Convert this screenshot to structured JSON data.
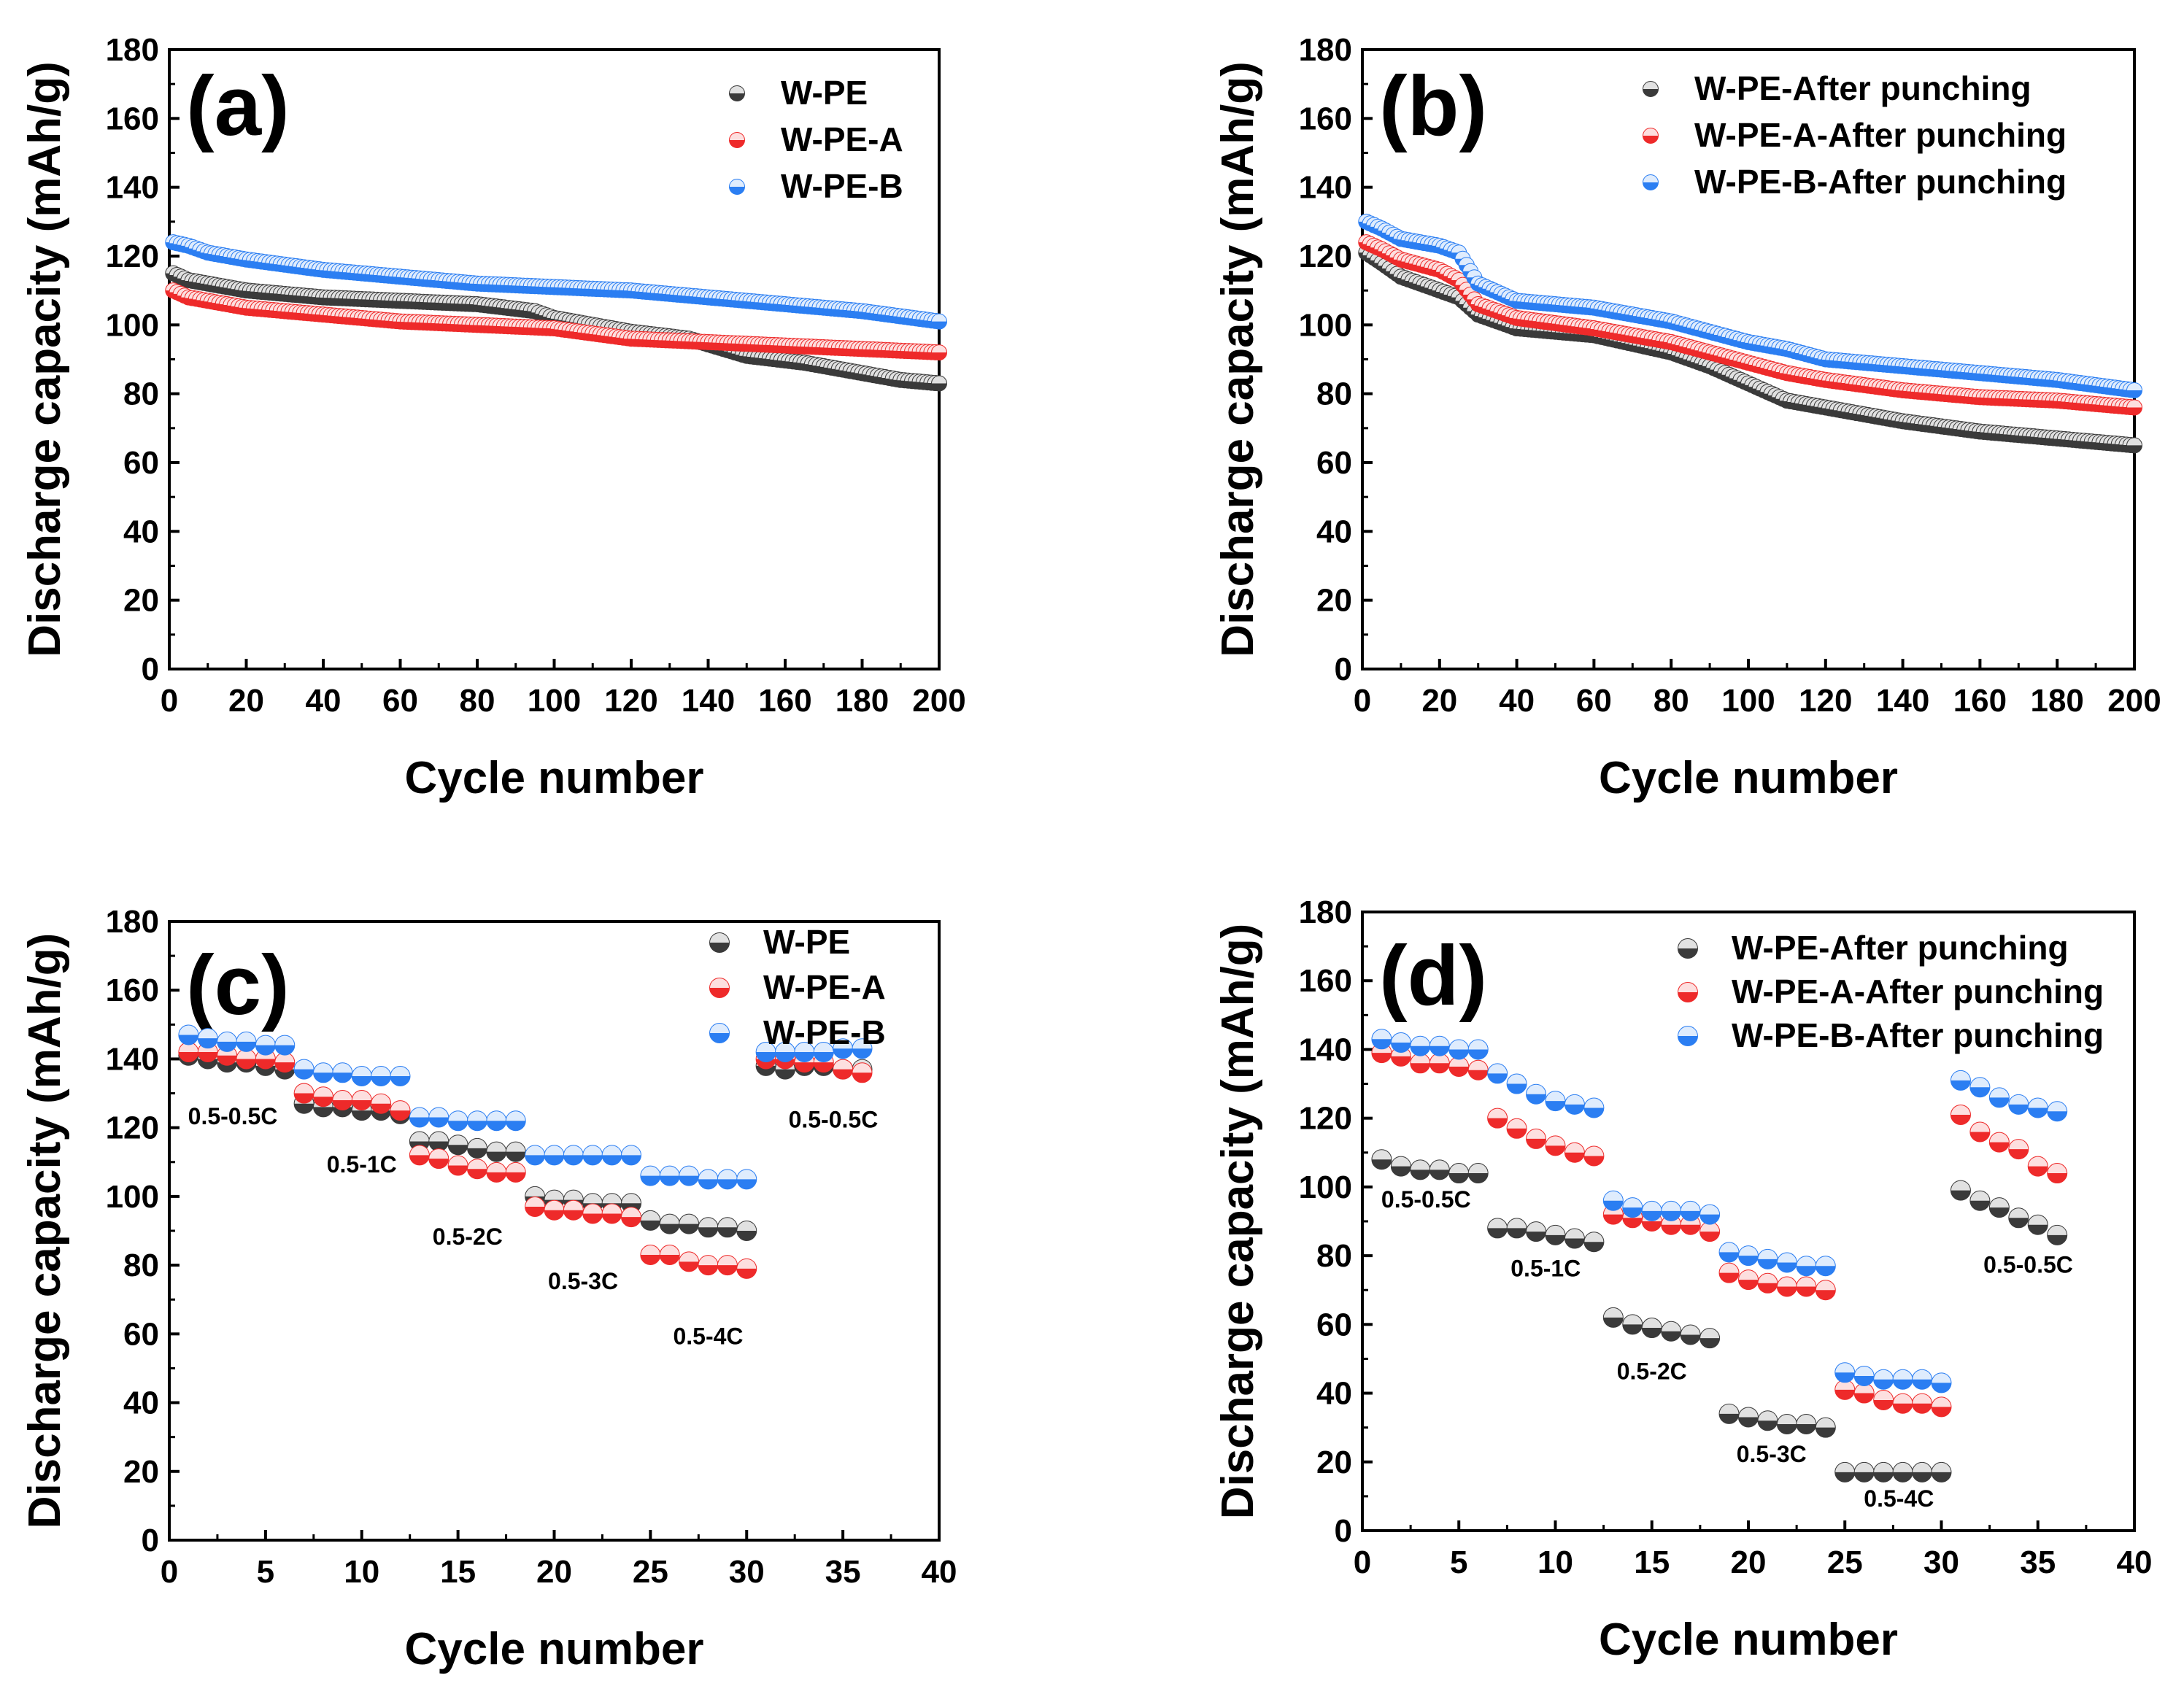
{
  "colors": {
    "black": "#3a3a3a",
    "red": "#ee2a2a",
    "blue": "#2b7ef2",
    "axis": "#000000"
  },
  "chart_data": [
    {
      "id": "a",
      "type": "scatter",
      "panel_label": "(a)",
      "xlabel": "Cycle number",
      "ylabel": "Discharge capacity (mAh/g)",
      "xlim": [
        0,
        200
      ],
      "ylim": [
        0,
        180
      ],
      "xticks": [
        0,
        20,
        40,
        60,
        80,
        100,
        120,
        140,
        160,
        180,
        200
      ],
      "yticks": [
        0,
        20,
        40,
        60,
        80,
        100,
        120,
        140,
        160,
        180
      ],
      "legend_position": "top-right",
      "series": [
        {
          "name": "W-PE",
          "color": "black",
          "x": [
            1,
            5,
            10,
            20,
            40,
            60,
            80,
            95,
            100,
            110,
            120,
            135,
            150,
            165,
            180,
            190,
            200
          ],
          "y": [
            115,
            113,
            112,
            110,
            108,
            107,
            106,
            104,
            102,
            100,
            98,
            96,
            91,
            89,
            86,
            84,
            83
          ]
        },
        {
          "name": "W-PE-A",
          "color": "red",
          "x": [
            1,
            5,
            10,
            20,
            40,
            60,
            80,
            100,
            120,
            140,
            160,
            180,
            200
          ],
          "y": [
            110,
            108,
            107,
            105,
            103,
            101,
            100,
            99,
            96,
            95,
            94,
            93,
            92
          ]
        },
        {
          "name": "W-PE-B",
          "color": "blue",
          "x": [
            1,
            5,
            10,
            20,
            40,
            60,
            80,
            100,
            120,
            140,
            160,
            180,
            200
          ],
          "y": [
            124,
            123,
            121,
            119,
            116,
            114,
            112,
            111,
            110,
            108,
            106,
            104,
            101
          ]
        }
      ]
    },
    {
      "id": "b",
      "type": "scatter",
      "panel_label": "(b)",
      "xlabel": "Cycle number",
      "ylabel": "Discharge capacity (mAh/g)",
      "xlim": [
        0,
        200
      ],
      "ylim": [
        0,
        180
      ],
      "xticks": [
        0,
        20,
        40,
        60,
        80,
        100,
        120,
        140,
        160,
        180,
        200
      ],
      "yticks": [
        0,
        20,
        40,
        60,
        80,
        100,
        120,
        140,
        160,
        180
      ],
      "legend_position": "top-right",
      "series": [
        {
          "name": "W-PE-After punching",
          "color": "black",
          "x": [
            1,
            5,
            10,
            20,
            25,
            30,
            40,
            60,
            80,
            90,
            100,
            110,
            120,
            140,
            160,
            180,
            200
          ],
          "y": [
            121,
            118,
            114,
            110,
            108,
            103,
            99,
            97,
            92,
            88,
            83,
            78,
            76,
            72,
            69,
            67,
            65
          ]
        },
        {
          "name": "W-PE-A-After punching",
          "color": "red",
          "x": [
            1,
            5,
            10,
            20,
            25,
            30,
            40,
            60,
            80,
            90,
            100,
            110,
            120,
            140,
            160,
            180,
            200
          ],
          "y": [
            124,
            122,
            119,
            116,
            113,
            106,
            102,
            99,
            95,
            92,
            89,
            86,
            84,
            81,
            79,
            78,
            76
          ]
        },
        {
          "name": "W-PE-B-After punching",
          "color": "blue",
          "x": [
            1,
            5,
            10,
            20,
            25,
            30,
            40,
            60,
            80,
            90,
            100,
            110,
            120,
            140,
            160,
            180,
            200
          ],
          "y": [
            130,
            128,
            125,
            123,
            121,
            112,
            107,
            105,
            101,
            98,
            95,
            93,
            90,
            88,
            86,
            84,
            81
          ]
        }
      ]
    },
    {
      "id": "c",
      "type": "scatter",
      "panel_label": "(c)",
      "xlabel": "Cycle number",
      "ylabel": "Discharge capacity (mAh/g)",
      "xlim": [
        0,
        40
      ],
      "ylim": [
        0,
        180
      ],
      "xticks": [
        0,
        5,
        10,
        15,
        20,
        25,
        30,
        35,
        40
      ],
      "yticks": [
        0,
        20,
        40,
        60,
        80,
        100,
        120,
        140,
        160,
        180
      ],
      "legend_position": "top-right",
      "annotations": [
        {
          "text": "0.5-0.5C",
          "x": 3.3,
          "y": 121
        },
        {
          "text": "0.5-1C",
          "x": 10,
          "y": 107
        },
        {
          "text": "0.5-2C",
          "x": 15.5,
          "y": 86
        },
        {
          "text": "0.5-3C",
          "x": 21.5,
          "y": 73
        },
        {
          "text": "0.5-4C",
          "x": 28,
          "y": 57
        },
        {
          "text": "0.5-0.5C",
          "x": 34.5,
          "y": 120
        }
      ],
      "series": [
        {
          "name": "W-PE",
          "color": "black",
          "x": [
            1,
            2,
            3,
            4,
            5,
            6,
            7,
            8,
            9,
            10,
            11,
            12,
            13,
            14,
            15,
            16,
            17,
            18,
            19,
            20,
            21,
            22,
            23,
            24,
            25,
            26,
            27,
            28,
            29,
            30,
            31,
            32,
            33,
            34,
            35,
            36
          ],
          "y": [
            141,
            140,
            139,
            139,
            138,
            137,
            127,
            126,
            126,
            125,
            125,
            124,
            116,
            116,
            115,
            114,
            113,
            113,
            100,
            99,
            99,
            98,
            98,
            98,
            93,
            92,
            92,
            91,
            91,
            90,
            138,
            137,
            138,
            138,
            137,
            137
          ]
        },
        {
          "name": "W-PE-A",
          "color": "red",
          "x": [
            1,
            2,
            3,
            4,
            5,
            6,
            7,
            8,
            9,
            10,
            11,
            12,
            13,
            14,
            15,
            16,
            17,
            18,
            19,
            20,
            21,
            22,
            23,
            24,
            25,
            26,
            27,
            28,
            29,
            30,
            31,
            32,
            33,
            34,
            35,
            36
          ],
          "y": [
            142,
            142,
            141,
            140,
            140,
            139,
            130,
            129,
            128,
            128,
            127,
            125,
            112,
            111,
            109,
            108,
            107,
            107,
            97,
            96,
            96,
            95,
            95,
            94,
            83,
            83,
            81,
            80,
            80,
            79,
            140,
            140,
            139,
            139,
            137,
            136
          ]
        },
        {
          "name": "W-PE-B",
          "color": "blue",
          "x": [
            1,
            2,
            3,
            4,
            5,
            6,
            7,
            8,
            9,
            10,
            11,
            12,
            13,
            14,
            15,
            16,
            17,
            18,
            19,
            20,
            21,
            22,
            23,
            24,
            25,
            26,
            27,
            28,
            29,
            30,
            31,
            32,
            33,
            34,
            35,
            36
          ],
          "y": [
            147,
            146,
            145,
            145,
            144,
            144,
            137,
            136,
            136,
            135,
            135,
            135,
            123,
            123,
            122,
            122,
            122,
            122,
            112,
            112,
            112,
            112,
            112,
            112,
            106,
            106,
            106,
            105,
            105,
            105,
            142,
            142,
            142,
            142,
            143,
            143
          ]
        }
      ]
    },
    {
      "id": "d",
      "type": "scatter",
      "panel_label": "(d)",
      "xlabel": "Cycle number",
      "ylabel": "Discharge capacity (mAh/g)",
      "xlim": [
        0,
        40
      ],
      "ylim": [
        0,
        180
      ],
      "xticks": [
        0,
        5,
        10,
        15,
        20,
        25,
        30,
        35,
        40
      ],
      "yticks": [
        0,
        20,
        40,
        60,
        80,
        100,
        120,
        140,
        160,
        180
      ],
      "legend_position": "top-right",
      "annotations": [
        {
          "text": "0.5-0.5C",
          "x": 3.3,
          "y": 94
        },
        {
          "text": "0.5-1C",
          "x": 9.5,
          "y": 74
        },
        {
          "text": "0.5-2C",
          "x": 15,
          "y": 44
        },
        {
          "text": "0.5-3C",
          "x": 21.2,
          "y": 20
        },
        {
          "text": "0.5-4C",
          "x": 27.8,
          "y": 7
        },
        {
          "text": "0.5-0.5C",
          "x": 34.5,
          "y": 75
        }
      ],
      "series": [
        {
          "name": "W-PE-After punching",
          "color": "black",
          "x": [
            1,
            2,
            3,
            4,
            5,
            6,
            7,
            8,
            9,
            10,
            11,
            12,
            13,
            14,
            15,
            16,
            17,
            18,
            19,
            20,
            21,
            22,
            23,
            24,
            25,
            26,
            27,
            28,
            29,
            30,
            31,
            32,
            33,
            34,
            35,
            36
          ],
          "y": [
            108,
            106,
            105,
            105,
            104,
            104,
            88,
            88,
            87,
            86,
            85,
            84,
            62,
            60,
            59,
            58,
            57,
            56,
            34,
            33,
            32,
            31,
            31,
            30,
            17,
            17,
            17,
            17,
            17,
            17,
            99,
            96,
            94,
            91,
            89,
            86
          ]
        },
        {
          "name": "W-PE-A-After punching",
          "color": "red",
          "x": [
            1,
            2,
            3,
            4,
            5,
            6,
            7,
            8,
            9,
            10,
            11,
            12,
            13,
            14,
            15,
            16,
            17,
            18,
            19,
            20,
            21,
            22,
            23,
            24,
            25,
            26,
            27,
            28,
            29,
            30,
            31,
            32,
            33,
            34,
            35,
            36
          ],
          "y": [
            139,
            138,
            136,
            136,
            135,
            134,
            120,
            117,
            114,
            112,
            110,
            109,
            92,
            91,
            90,
            89,
            89,
            87,
            75,
            73,
            72,
            71,
            71,
            70,
            41,
            40,
            38,
            37,
            37,
            36,
            121,
            116,
            113,
            111,
            106,
            104
          ]
        },
        {
          "name": "W-PE-B-After punching",
          "color": "blue",
          "x": [
            1,
            2,
            3,
            4,
            5,
            6,
            7,
            8,
            9,
            10,
            11,
            12,
            13,
            14,
            15,
            16,
            17,
            18,
            19,
            20,
            21,
            22,
            23,
            24,
            25,
            26,
            27,
            28,
            29,
            30,
            31,
            32,
            33,
            34,
            35,
            36
          ],
          "y": [
            143,
            142,
            141,
            141,
            140,
            140,
            133,
            130,
            127,
            125,
            124,
            123,
            96,
            94,
            93,
            93,
            93,
            92,
            81,
            80,
            79,
            78,
            77,
            77,
            46,
            45,
            44,
            44,
            44,
            43,
            131,
            129,
            126,
            124,
            123,
            122
          ]
        }
      ]
    }
  ]
}
